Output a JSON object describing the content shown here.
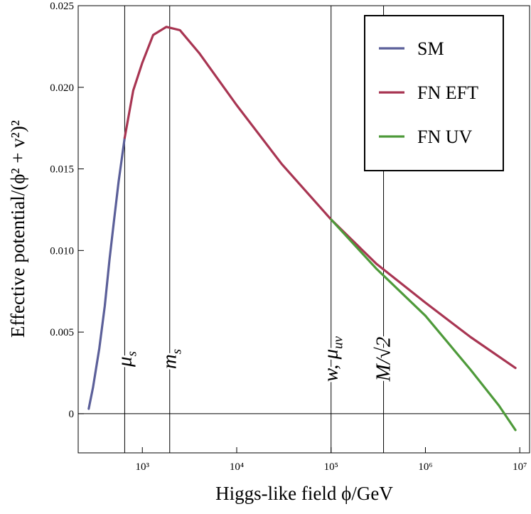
{
  "chart_data": {
    "type": "line",
    "x_label": "Higgs-like field ϕ/GeV",
    "y_label": "Effective potential/(ϕ² + v²)²",
    "log_x": true,
    "xlim": [
      209,
      12700000
    ],
    "ylim": [
      -0.0024,
      0.025
    ],
    "xticks": [
      {
        "value": 1000,
        "label": "10³"
      },
      {
        "value": 10000,
        "label": "10⁴"
      },
      {
        "value": 100000,
        "label": "10⁵"
      },
      {
        "value": 1000000,
        "label": "10⁶"
      },
      {
        "value": 10000000,
        "label": "10⁷"
      }
    ],
    "yticks": [
      0,
      0.005,
      {
        "value": 0.01,
        "label": "0.010"
      },
      0.015,
      {
        "value": 0.02,
        "label": "0.020"
      },
      0.025
    ],
    "legend": "top-right",
    "series": [
      {
        "name": "SM",
        "color": "#5b5f99",
        "x": [
          270,
          300,
          350,
          400,
          450,
          500,
          560,
          650
        ],
        "values": [
          0.0003,
          0.0016,
          0.004,
          0.0066,
          0.0095,
          0.0118,
          0.0142,
          0.0169
        ]
      },
      {
        "name": "FN EFT",
        "color": "#a83552",
        "x": [
          650,
          800,
          1000,
          1300,
          1800,
          2500,
          4000,
          10000,
          30000,
          100000,
          300000,
          1000000,
          3000000,
          9000000
        ],
        "values": [
          0.0169,
          0.0198,
          0.0215,
          0.0232,
          0.0237,
          0.0235,
          0.0221,
          0.0189,
          0.0153,
          0.0119,
          0.0092,
          0.0068,
          0.0047,
          0.0028
        ]
      },
      {
        "name": "FN UV",
        "color": "#4e9a3a",
        "x": [
          100000,
          300000,
          1000000,
          3000000,
          6000000,
          9000000
        ],
        "values": [
          0.0119,
          0.0089,
          0.006,
          0.0027,
          0.0005,
          -0.001
        ]
      }
    ],
    "annotations": [
      {
        "x": 650,
        "text": "μ",
        "sub": "s"
      },
      {
        "x": 1950,
        "text": "m",
        "sub": "s"
      },
      {
        "x": 100000,
        "text": "w, μ",
        "sub": "uv"
      },
      {
        "x": 360000,
        "text": "M/√2"
      }
    ]
  }
}
